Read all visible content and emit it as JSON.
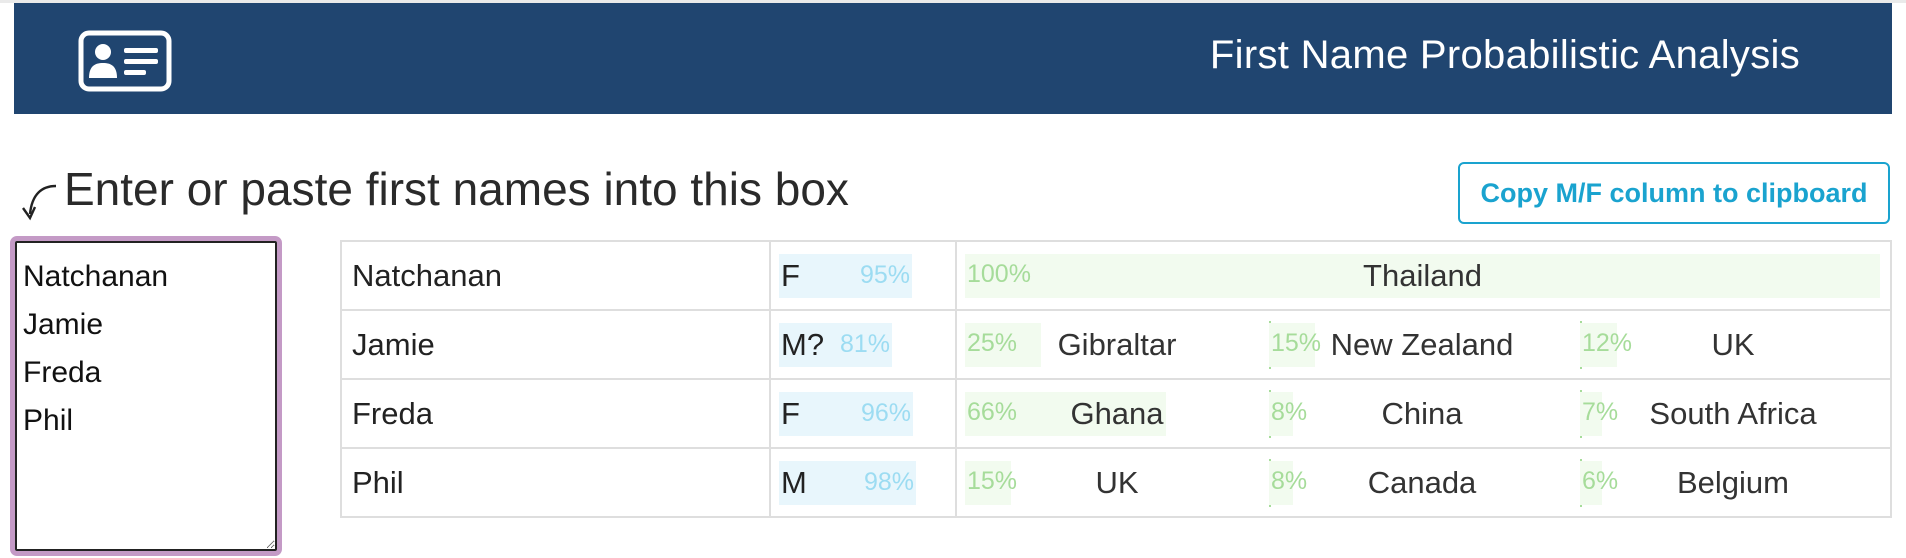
{
  "header": {
    "title": "First Name Probabilistic Analysis",
    "logo_icon": "id-card-icon",
    "background": "#204570"
  },
  "input": {
    "prompt": "Enter or paste first names into this box",
    "arrow_icon": "curved-arrow-down-icon",
    "value": "Natchanan\nJamie\nFreda\nPhil",
    "border_color": "#c49ac6"
  },
  "actions": {
    "copy_label": "Copy M/F column to clipboard",
    "accent": "#1aa3cf"
  },
  "results": [
    {
      "name": "Natchanan",
      "gender": "F",
      "gender_pct": "95%",
      "gender_prob": 0.95,
      "countries": [
        {
          "country": "Thailand",
          "pct": "100%",
          "prob": 1.0
        }
      ]
    },
    {
      "name": "Jamie",
      "gender": "M?",
      "gender_pct": "81%",
      "gender_prob": 0.81,
      "countries": [
        {
          "country": "Gibraltar",
          "pct": "25%",
          "prob": 0.25
        },
        {
          "country": "New Zealand",
          "pct": "15%",
          "prob": 0.15
        },
        {
          "country": "UK",
          "pct": "12%",
          "prob": 0.12
        }
      ]
    },
    {
      "name": "Freda",
      "gender": "F",
      "gender_pct": "96%",
      "gender_prob": 0.96,
      "countries": [
        {
          "country": "Ghana",
          "pct": "66%",
          "prob": 0.66
        },
        {
          "country": "China",
          "pct": "8%",
          "prob": 0.08
        },
        {
          "country": "South Africa",
          "pct": "7%",
          "prob": 0.07
        }
      ]
    },
    {
      "name": "Phil",
      "gender": "M",
      "gender_pct": "98%",
      "gender_prob": 0.98,
      "countries": [
        {
          "country": "UK",
          "pct": "15%",
          "prob": 0.15
        },
        {
          "country": "Canada",
          "pct": "8%",
          "prob": 0.08
        },
        {
          "country": "Belgium",
          "pct": "6%",
          "prob": 0.06
        }
      ]
    }
  ]
}
